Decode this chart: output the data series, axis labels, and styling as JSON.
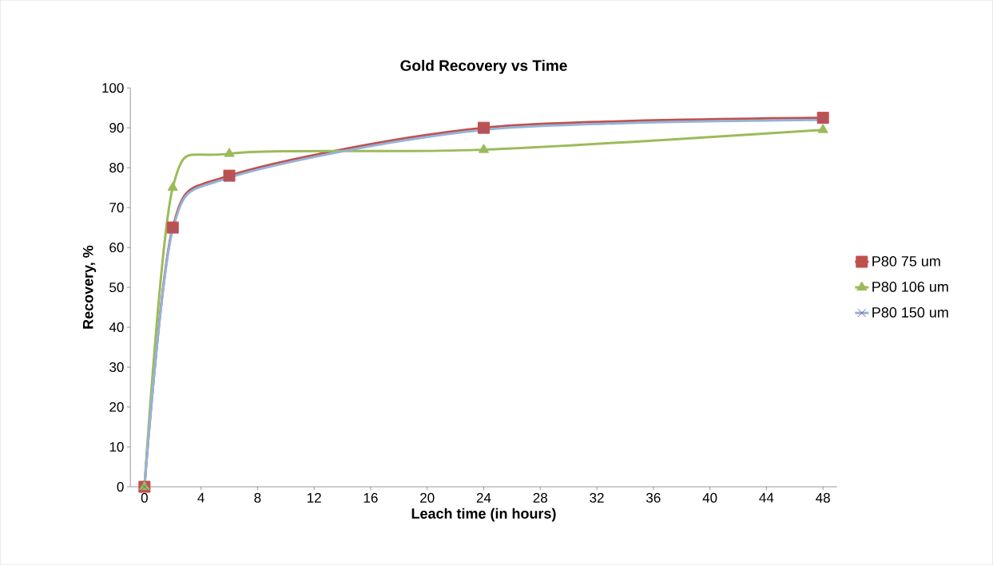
{
  "chart_data": {
    "type": "line",
    "title": "Gold Recovery   vs   Time",
    "xlabel": "Leach time    (in hours)",
    "ylabel": "Recovery, %",
    "x": [
      0,
      2,
      6,
      24,
      48
    ],
    "series": [
      {
        "name": "P80 75 um",
        "color": "#c0504d",
        "marker": "square",
        "values": [
          0,
          65,
          78,
          90,
          92.5
        ]
      },
      {
        "name": "P80 106 um",
        "color": "#9bbb59",
        "marker": "triangle",
        "values": [
          0,
          75,
          83.5,
          84.5,
          89.5
        ]
      },
      {
        "name": "P80 150 um",
        "color": "#95b3d7",
        "marker": "cross",
        "values": [
          0,
          64.5,
          77.5,
          89.5,
          92
        ]
      }
    ],
    "xlim": [
      -1,
      49
    ],
    "ylim": [
      0,
      100
    ],
    "xticks": [
      0,
      4,
      8,
      12,
      16,
      20,
      24,
      28,
      32,
      36,
      40,
      44,
      48
    ],
    "yticks": [
      0,
      10,
      20,
      30,
      40,
      50,
      60,
      70,
      80,
      90,
      100
    ],
    "legend": "right",
    "grid": false,
    "line_style": "solid"
  }
}
